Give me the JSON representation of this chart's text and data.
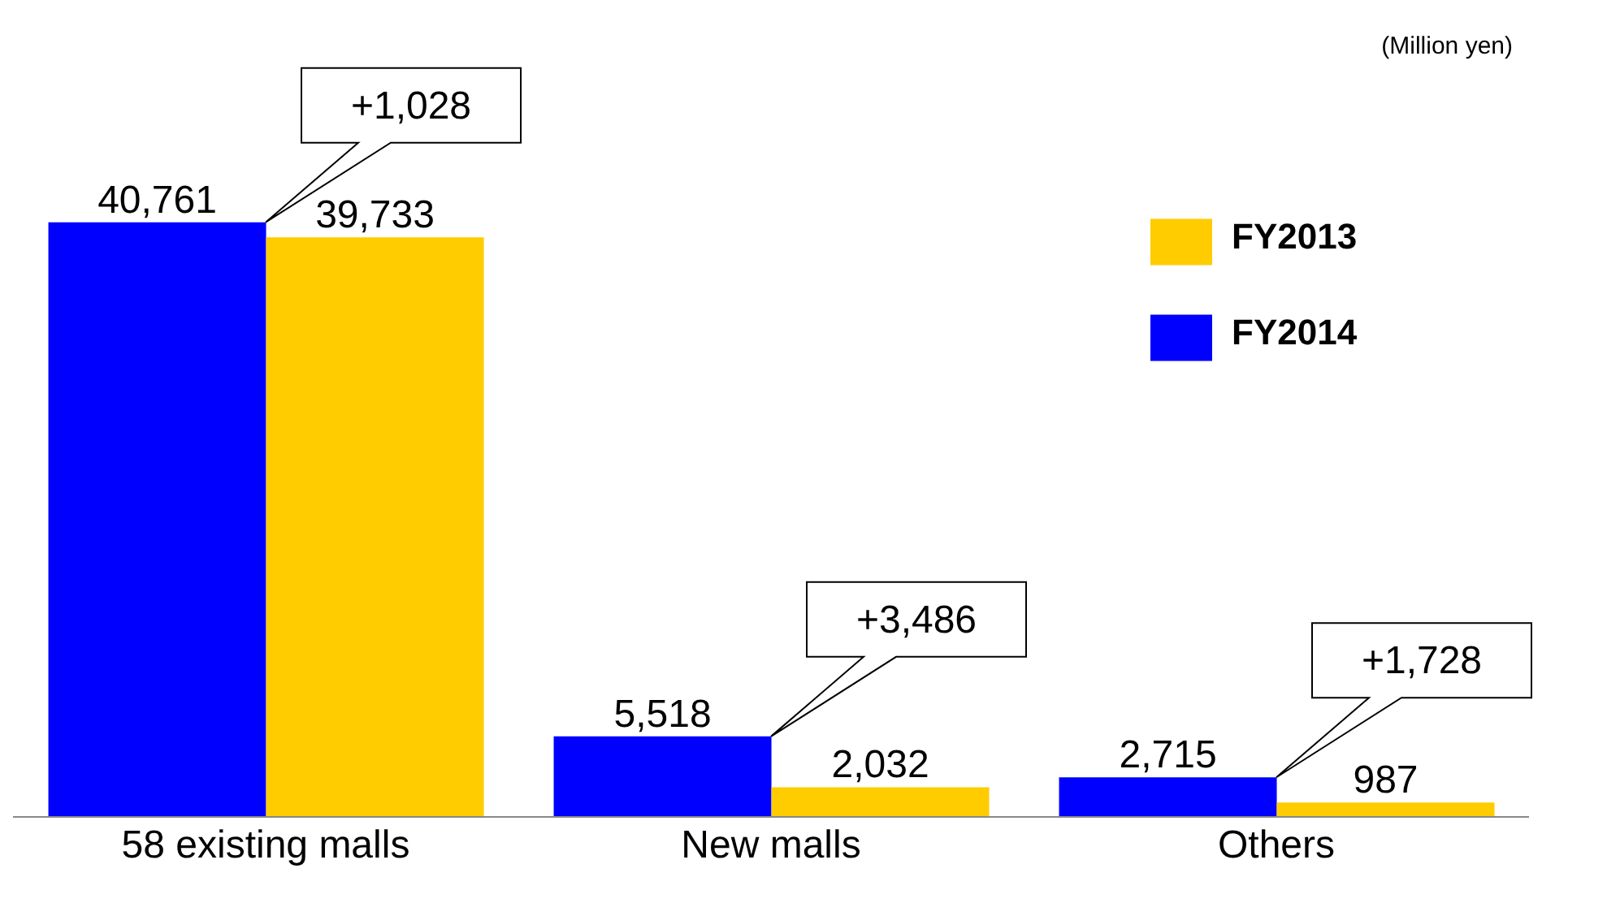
{
  "chart_data": {
    "type": "bar",
    "categories": [
      "58 existing malls",
      "New malls",
      "Others"
    ],
    "series": [
      {
        "name": "FY2014",
        "color": "#0000ff",
        "values": [
          40761,
          5518,
          2715
        ],
        "value_labels": [
          "40,761",
          "5,518",
          "2,715"
        ]
      },
      {
        "name": "FY2013",
        "color": "#ffcc00",
        "values": [
          39733,
          2032,
          987
        ],
        "value_labels": [
          "39,733",
          "2,032",
          "987"
        ]
      }
    ],
    "legend": "top right",
    "annotations": [
      "(Million yen)",
      "+1,028",
      "+3,486",
      "+1,728"
    ]
  }
}
